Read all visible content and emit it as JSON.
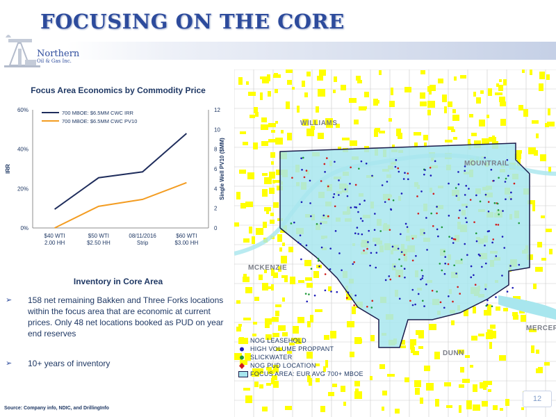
{
  "slide": {
    "title": "FOCUSING ON THE CORE",
    "page_number": "12",
    "source": "Source:  Company info, NDIC, and DrillingInfo"
  },
  "logo": {
    "name_line1": "Northern",
    "name_line2": "Oil & Gas Inc."
  },
  "chart": {
    "title": "Focus Area Economics by Commodity Price"
  },
  "chart_data": {
    "type": "line",
    "title": "Focus Area Economics by Commodity Price",
    "categories": [
      [
        "$40 WTI",
        "2.00 HH"
      ],
      [
        "$50 WTI",
        "$2.50 HH"
      ],
      [
        "08/11/2016",
        "Strip"
      ],
      [
        "$60 WTI",
        "$3.00 HH"
      ]
    ],
    "ylabel": "IRR",
    "y2label": "Single Well PV10 ($MM)",
    "ylim": [
      0,
      60
    ],
    "y2lim": [
      0,
      12
    ],
    "yticks": [
      "0%",
      "20%",
      "40%",
      "60%"
    ],
    "y2ticks": [
      "0",
      "2",
      "4",
      "6",
      "8",
      "10",
      "12"
    ],
    "legend_position": "top-left",
    "series": [
      {
        "name": "700 MBOE: $6.5MM CWC IRR",
        "axis": "left",
        "color": "#1f2d5c",
        "values": [
          9.5,
          25.5,
          28.5,
          48
        ]
      },
      {
        "name": "700 MBOE: $6.5MM CWC PV10",
        "axis": "right",
        "color": "#f39c21",
        "values": [
          0,
          2.2,
          2.9,
          4.6
        ]
      }
    ]
  },
  "inventory": {
    "title": "Inventory in Core Area",
    "bullets": [
      "158 net remaining Bakken and Three Forks locations within the focus area that are economic at current prices.  Only 48 net locations booked as PUD on year end reserves",
      "10+ years of inventory"
    ]
  },
  "map": {
    "labels": {
      "williams": "WILLIAMS",
      "mountrail": "MOUNTRAIL",
      "mckenzie": "MCKENZIE",
      "mercer": "MERCER",
      "dunn": "DUNN"
    },
    "legend": [
      {
        "label": "NOG LEASEHOLD",
        "symbol": "square",
        "color": "#ffff00"
      },
      {
        "label": "HIGH VOLUME PROPPANT",
        "symbol": "circle",
        "color": "#1a1ab8"
      },
      {
        "label": "SLICKWATER",
        "symbol": "circle",
        "color": "#1f9a3a"
      },
      {
        "label": "NOG PUD LOCATION",
        "symbol": "diamond",
        "color": "#d11a1a"
      },
      {
        "label": "FOCUS AREA: EUR AVG 700+ MBOE",
        "symbol": "rect",
        "color": "#a8e6ee"
      }
    ]
  }
}
